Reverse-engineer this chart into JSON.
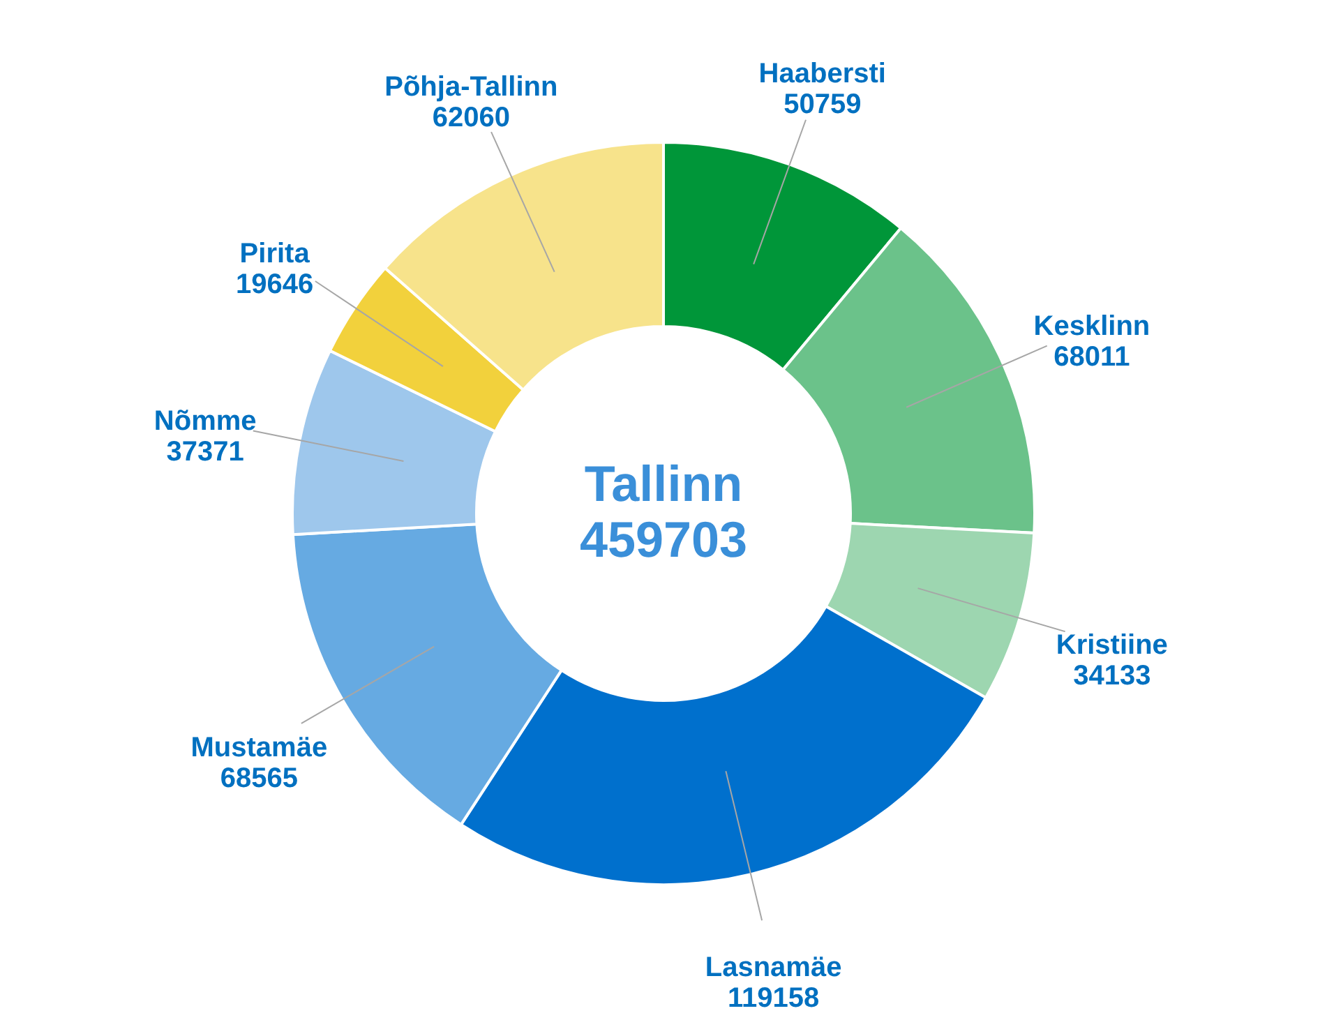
{
  "chart_data": {
    "type": "donut",
    "categories": [
      "Haabersti",
      "Kesklinn",
      "Kristiine",
      "Lasnamäe",
      "Mustamäe",
      "Nõmme",
      "Pirita",
      "Põhja-Tallinn"
    ],
    "values": [
      50759,
      68011,
      34133,
      119158,
      68565,
      37371,
      19646,
      62060
    ],
    "colors": [
      "#009639",
      "#6bc28a",
      "#9dd6b0",
      "#0070cd",
      "#66aae2",
      "#9ec7ec",
      "#f2d13c",
      "#f7e38b"
    ],
    "annotations": [
      "Tallinn",
      "459703"
    ],
    "data_labels": true
  }
}
